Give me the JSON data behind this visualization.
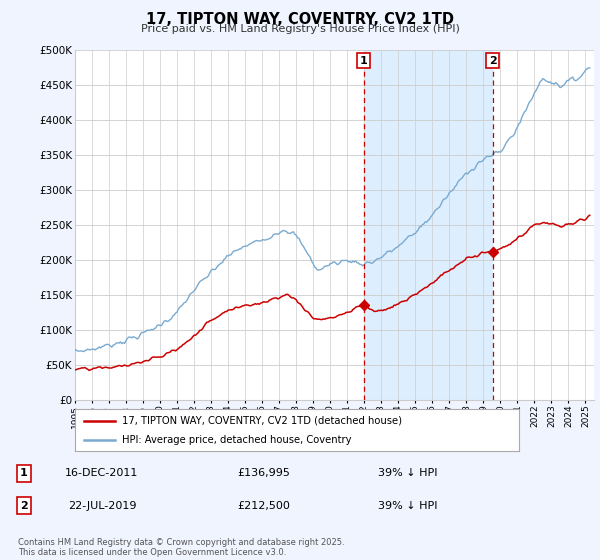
{
  "title": "17, TIPTON WAY, COVENTRY, CV2 1TD",
  "subtitle": "Price paid vs. HM Land Registry's House Price Index (HPI)",
  "legend_label_red": "17, TIPTON WAY, COVENTRY, CV2 1TD (detached house)",
  "legend_label_blue": "HPI: Average price, detached house, Coventry",
  "annotation1": {
    "label": "1",
    "date": "16-DEC-2011",
    "price": "£136,995",
    "note": "39% ↓ HPI",
    "x_year": 2011.958
  },
  "annotation2": {
    "label": "2",
    "date": "22-JUL-2019",
    "price": "£212,500",
    "note": "39% ↓ HPI",
    "x_year": 2019.55
  },
  "footer": "Contains HM Land Registry data © Crown copyright and database right 2025.\nThis data is licensed under the Open Government Licence v3.0.",
  "ylim": [
    0,
    500000
  ],
  "yticks": [
    0,
    50000,
    100000,
    150000,
    200000,
    250000,
    300000,
    350000,
    400000,
    450000,
    500000
  ],
  "ytick_labels": [
    "£0",
    "£50K",
    "£100K",
    "£150K",
    "£200K",
    "£250K",
    "£300K",
    "£350K",
    "£400K",
    "£450K",
    "£500K"
  ],
  "xlim": [
    1995.0,
    2025.5
  ],
  "red_color": "#cc0000",
  "blue_color": "#7aaad0",
  "shade_color": "#ddeeff",
  "background_color": "#f0f4ff",
  "plot_bg_color": "#ffffff",
  "grid_color": "#cccccc"
}
